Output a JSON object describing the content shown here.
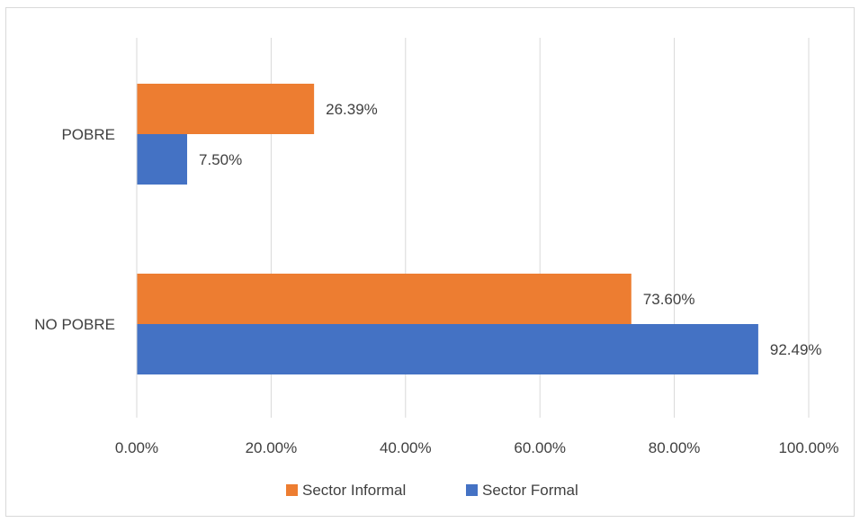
{
  "chart_data": {
    "type": "bar",
    "orientation": "horizontal",
    "categories": [
      "POBRE",
      "NO POBRE"
    ],
    "series": [
      {
        "name": "Sector Informal",
        "color": "#ED7D31",
        "values": [
          26.39,
          73.6
        ]
      },
      {
        "name": "Sector Formal",
        "color": "#4472C4",
        "values": [
          7.5,
          92.49
        ]
      }
    ],
    "data_labels": [
      [
        "26.39%",
        "73.60%"
      ],
      [
        "7.50%",
        "92.49%"
      ]
    ],
    "xlim": [
      0,
      100
    ],
    "x_ticks": [
      "0.00%",
      "20.00%",
      "40.00%",
      "60.00%",
      "80.00%",
      "100.00%"
    ],
    "grid": true,
    "legend": "bottom",
    "gridline_color": "#d9d9d9"
  }
}
